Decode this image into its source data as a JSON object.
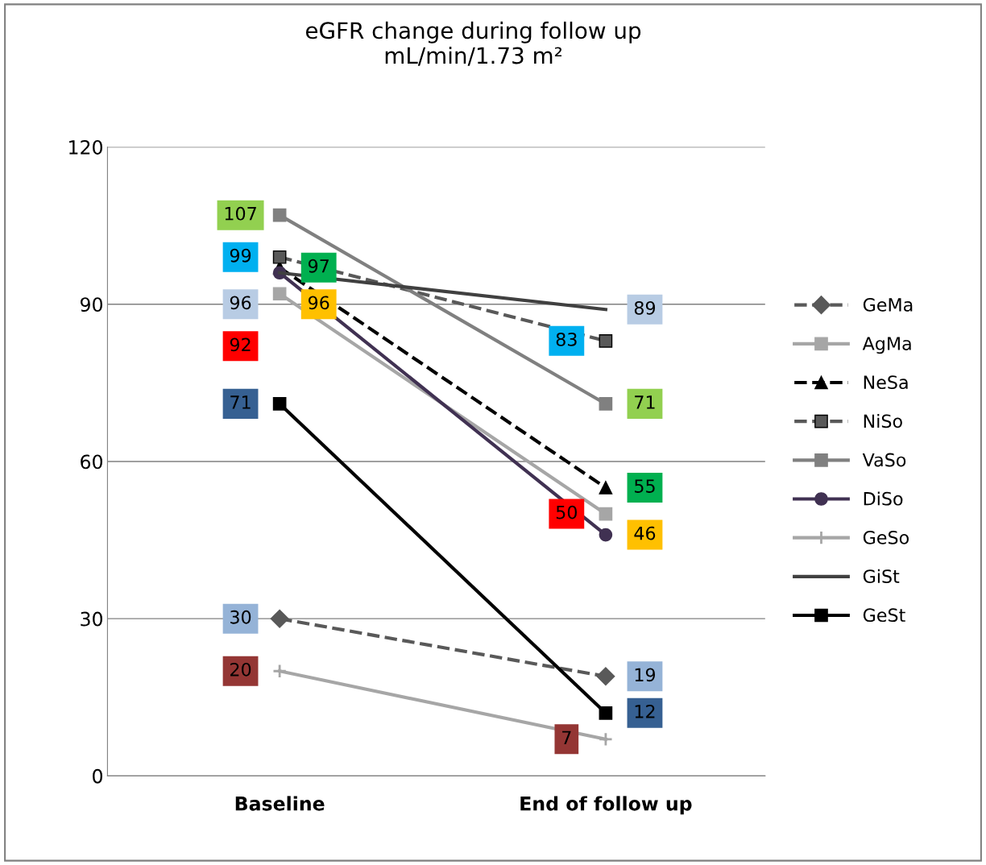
{
  "chart_data": {
    "type": "line",
    "title": "eGFR change during follow up\nmL/min/1.73 m²",
    "categories": [
      "Baseline",
      "End of follow up"
    ],
    "ylim": [
      0,
      120
    ],
    "yticks": [
      0,
      30,
      60,
      90,
      120
    ],
    "grid": "y",
    "legend": "right",
    "data_labels": true,
    "series": [
      {
        "name": "GeMa",
        "color": "#595959",
        "values": [
          30,
          19
        ],
        "marker": "diamond",
        "line_style": "dashed"
      },
      {
        "name": "AgMa",
        "color": "#a6a6a6",
        "values": [
          92,
          50
        ],
        "marker": "square",
        "line_style": "solid"
      },
      {
        "name": "NeSa",
        "color": "#000000",
        "values": [
          97,
          55
        ],
        "marker": "triangle",
        "line_style": "dashed"
      },
      {
        "name": "NiSo",
        "color": "#595959",
        "values": [
          99,
          83
        ],
        "marker": "square",
        "line_style": "dashed"
      },
      {
        "name": "VaSo",
        "color": "#808080",
        "values": [
          107,
          71
        ],
        "marker": "square",
        "line_style": "solid"
      },
      {
        "name": "DiSo",
        "color": "#403152",
        "values": [
          96,
          46
        ],
        "marker": "circle",
        "line_style": "solid"
      },
      {
        "name": "GeSo",
        "color": "#a6a6a6",
        "values": [
          20,
          7
        ],
        "marker": "cross",
        "line_style": "solid"
      },
      {
        "name": "GiSt",
        "color": "#404040",
        "values": [
          96,
          89
        ],
        "line_style": "solid"
      },
      {
        "name": "GeSt",
        "color": "#000000",
        "values": [
          71,
          12
        ],
        "marker": "square",
        "line_style": "solid"
      }
    ]
  }
}
